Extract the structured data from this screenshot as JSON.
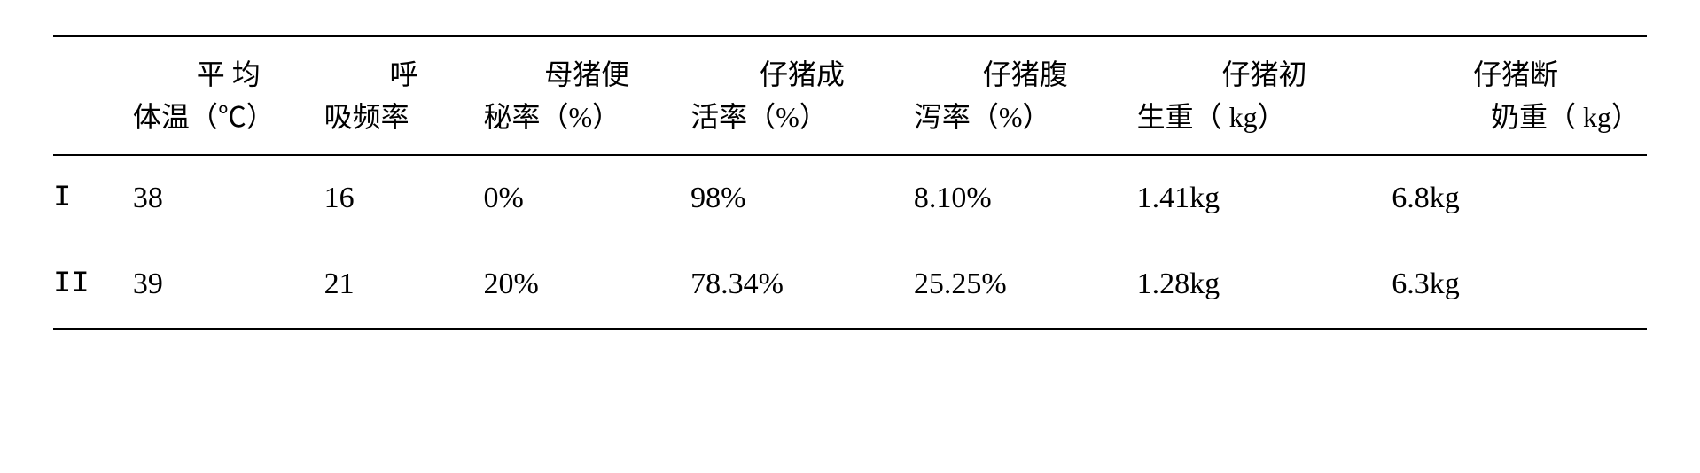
{
  "table": {
    "type": "table",
    "background_color": "#ffffff",
    "text_color": "#000000",
    "rule_color": "#000000",
    "header_fontsize": 32,
    "body_fontsize": 34,
    "font_family": "SimSun",
    "columns": [
      {
        "line1": "",
        "line2": "",
        "width_pct": 5,
        "align": "left"
      },
      {
        "line1": "平 均",
        "line2": "体温（℃）",
        "width_pct": 12,
        "align": "left"
      },
      {
        "line1": "呼",
        "line2": "吸频率",
        "width_pct": 10,
        "align": "left"
      },
      {
        "line1": "母猪便",
        "line2": "秘率（%）",
        "width_pct": 13,
        "align": "left"
      },
      {
        "line1": "仔猪成",
        "line2": "活率（%）",
        "width_pct": 14,
        "align": "left"
      },
      {
        "line1": "仔猪腹",
        "line2": "泻率（%）",
        "width_pct": 14,
        "align": "left"
      },
      {
        "line1": "仔猪初",
        "line2": "生重（ kg）",
        "width_pct": 16,
        "align": "left"
      },
      {
        "line1": "仔猪断",
        "line2": "奶重（ kg）",
        "width_pct": 16,
        "align": "right"
      }
    ],
    "rows": [
      {
        "label": "I",
        "values": [
          "38",
          "16",
          "0%",
          "98%",
          "8.10%",
          "1.41kg",
          "6.8kg"
        ]
      },
      {
        "label": "II",
        "values": [
          "39",
          "21",
          "20%",
          "78.34%",
          "25.25%",
          "1.28kg",
          "6.3kg"
        ]
      }
    ]
  }
}
